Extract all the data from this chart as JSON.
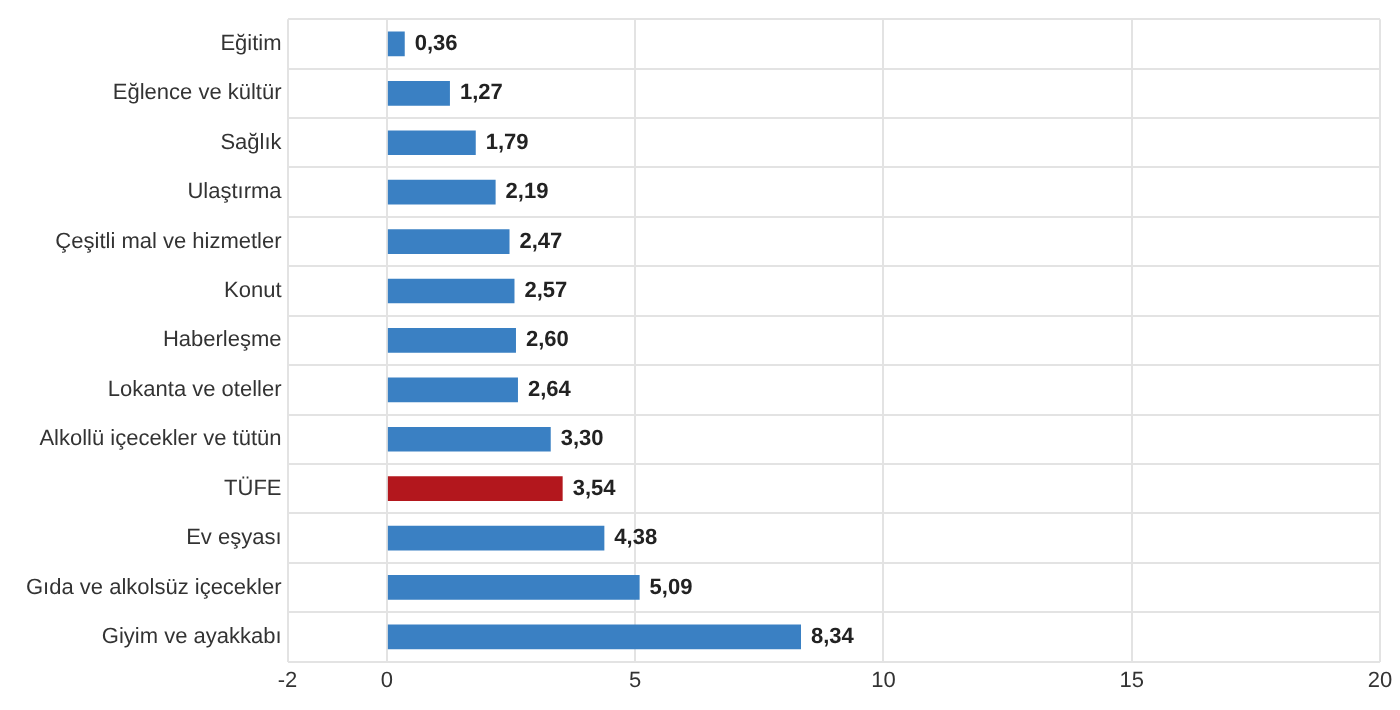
{
  "chart_data": {
    "type": "bar",
    "orientation": "horizontal",
    "categories": [
      "Eğitim",
      "Eğlence ve kültür",
      "Sağlık",
      "Ulaştırma",
      "Çeşitli mal ve hizmetler",
      "Konut",
      "Haberleşme",
      "Lokanta ve oteller",
      "Alkollü içecekler ve tütün",
      "TÜFE",
      "Ev eşyası",
      "Gıda ve alkolsüz içecekler",
      "Giyim ve ayakkabı"
    ],
    "values": [
      0.36,
      1.27,
      1.79,
      2.19,
      2.47,
      2.57,
      2.6,
      2.64,
      3.3,
      3.54,
      4.38,
      5.09,
      8.34
    ],
    "value_labels": [
      "0,36",
      "1,27",
      "1,79",
      "2,19",
      "2,47",
      "2,57",
      "2,60",
      "2,64",
      "3,30",
      "3,54",
      "4,38",
      "5,09",
      "8,34"
    ],
    "colors": [
      "#3a80c3",
      "#3a80c3",
      "#3a80c3",
      "#3a80c3",
      "#3a80c3",
      "#3a80c3",
      "#3a80c3",
      "#3a80c3",
      "#3a80c3",
      "#b3171d",
      "#3a80c3",
      "#3a80c3",
      "#3a80c3"
    ],
    "xlim": [
      -2,
      20
    ],
    "xticks": [
      -2,
      0,
      5,
      10,
      15,
      20
    ],
    "grid": true,
    "legend": false
  }
}
